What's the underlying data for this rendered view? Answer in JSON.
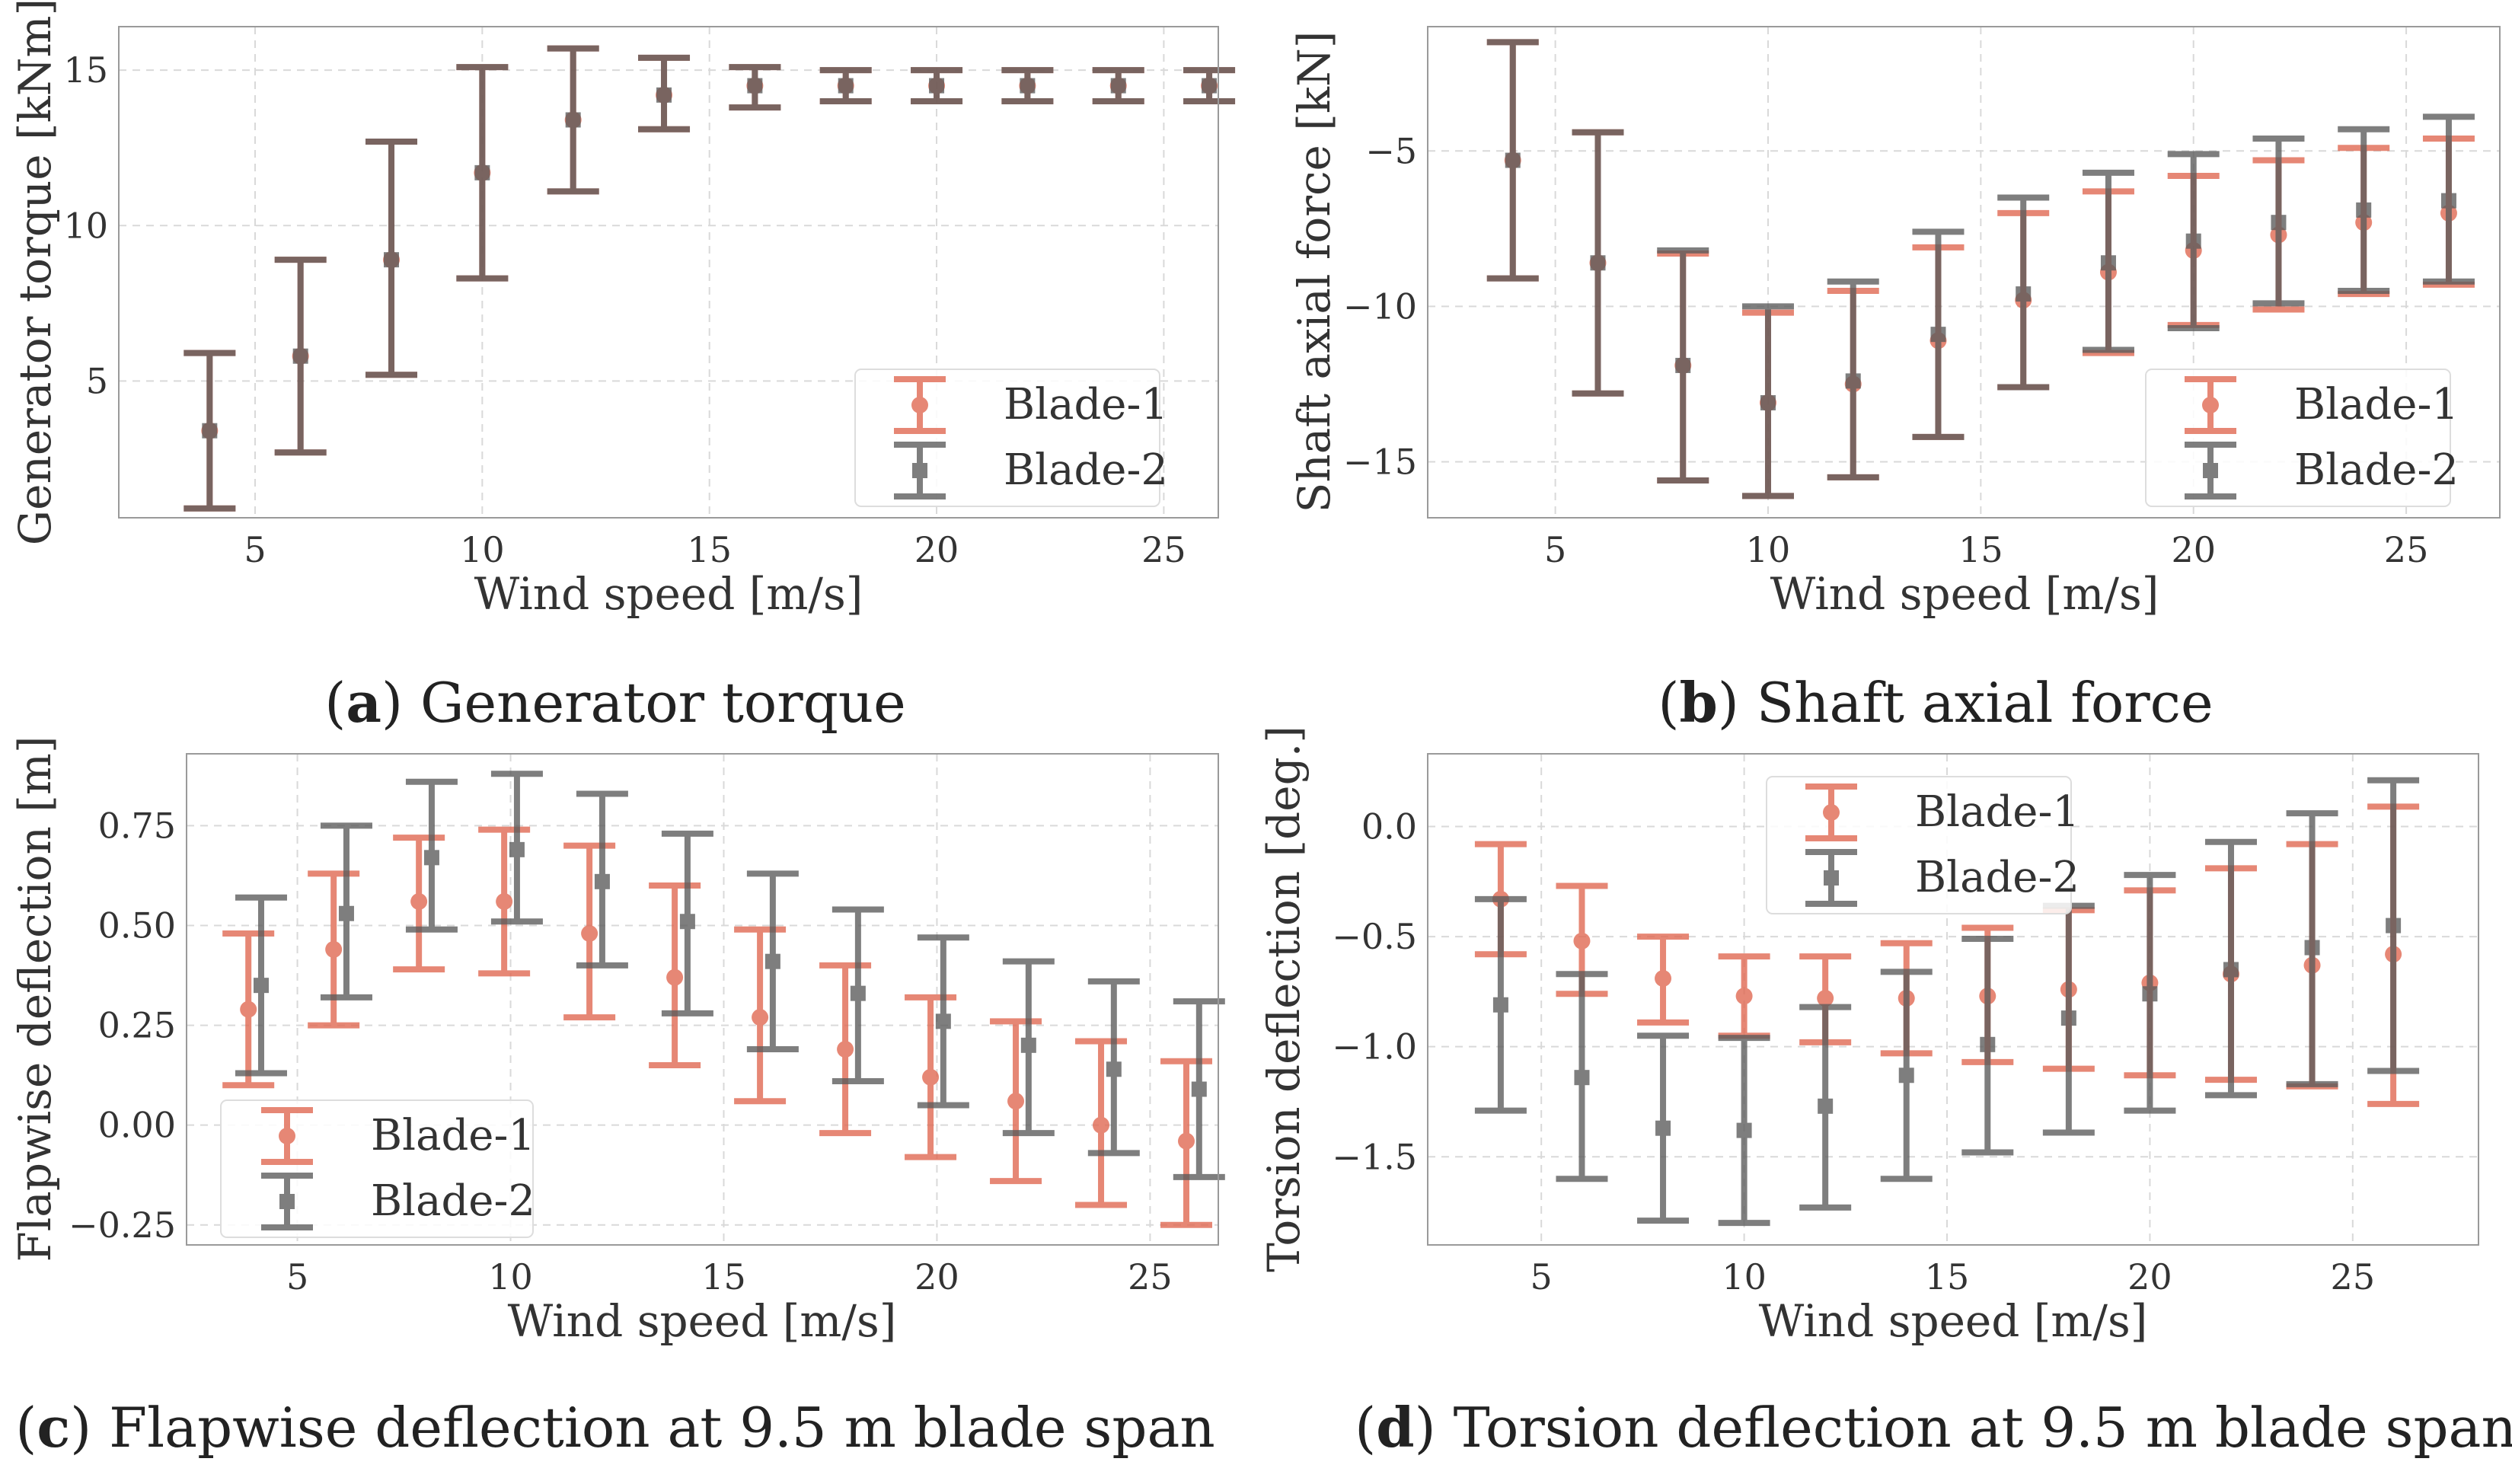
{
  "colors": {
    "blade1": "#e0664f",
    "blade2": "#5b5b5b",
    "overlap": "#6e5a52"
  },
  "chart_data": [
    {
      "type": "errorbar",
      "id": "a",
      "caption_letter": "a",
      "caption_text": "Generator torque",
      "xlabel": "Wind speed [m/s]",
      "ylabel": "Generator torque [kNm]",
      "xlim": [
        2.0,
        26.2
      ],
      "ylim": [
        0.6,
        16.4
      ],
      "xticks": [
        5,
        10,
        15,
        20,
        25
      ],
      "yticks": [
        5,
        10,
        15
      ],
      "legend": "lower right",
      "x": [
        4,
        6,
        8,
        10,
        12,
        14,
        16,
        18,
        20,
        22,
        24,
        26
      ],
      "series": [
        {
          "name": "Blade-1",
          "marker": "circle",
          "mean": [
            3.4,
            5.8,
            8.9,
            11.7,
            13.4,
            14.2,
            14.5,
            14.5,
            14.5,
            14.5,
            14.5,
            14.5
          ],
          "lower": [
            0.9,
            2.7,
            5.2,
            8.3,
            11.1,
            13.1,
            13.8,
            14.0,
            14.0,
            14.0,
            14.0,
            14.0
          ],
          "upper": [
            5.9,
            8.9,
            12.7,
            15.1,
            15.7,
            15.4,
            15.1,
            15.0,
            15.0,
            15.0,
            15.0,
            15.0
          ]
        },
        {
          "name": "Blade-2",
          "marker": "square",
          "mean": [
            3.4,
            5.8,
            8.9,
            11.7,
            13.4,
            14.2,
            14.5,
            14.5,
            14.5,
            14.5,
            14.5,
            14.5
          ],
          "lower": [
            0.9,
            2.7,
            5.2,
            8.3,
            11.1,
            13.1,
            13.8,
            14.0,
            14.0,
            14.0,
            14.0,
            14.0
          ],
          "upper": [
            5.9,
            8.9,
            12.7,
            15.1,
            15.7,
            15.4,
            15.1,
            15.0,
            15.0,
            15.0,
            15.0,
            15.0
          ]
        }
      ]
    },
    {
      "type": "errorbar",
      "id": "b",
      "caption_letter": "b",
      "caption_text": "Shaft axial force",
      "xlabel": "Wind speed [m/s]",
      "ylabel": "Shaft axial force [kN]",
      "xlim": [
        2.0,
        27.2
      ],
      "ylim": [
        -16.8,
        -1.0
      ],
      "xticks": [
        5,
        10,
        15,
        20,
        25
      ],
      "yticks": [
        -15,
        -10,
        -5
      ],
      "legend": "lower right",
      "x": [
        4,
        6,
        8,
        10,
        12,
        14,
        16,
        18,
        20,
        22,
        24,
        26
      ],
      "series": [
        {
          "name": "Blade-1",
          "marker": "circle",
          "mean": [
            -5.3,
            -8.6,
            -11.9,
            -13.1,
            -12.5,
            -11.1,
            -9.8,
            -8.9,
            -8.2,
            -7.7,
            -7.3,
            -7.0
          ],
          "lower": [
            -9.1,
            -12.8,
            -15.6,
            -16.1,
            -15.5,
            -14.2,
            -12.6,
            -11.5,
            -10.6,
            -10.1,
            -9.6,
            -9.3
          ],
          "upper": [
            -1.5,
            -4.4,
            -8.3,
            -10.2,
            -9.5,
            -8.1,
            -7.0,
            -6.3,
            -5.8,
            -5.3,
            -4.9,
            -4.6
          ]
        },
        {
          "name": "Blade-2",
          "marker": "square",
          "mean": [
            -5.3,
            -8.6,
            -11.9,
            -13.1,
            -12.4,
            -10.9,
            -9.6,
            -8.6,
            -7.9,
            -7.3,
            -6.9,
            -6.6
          ],
          "lower": [
            -9.1,
            -12.8,
            -15.6,
            -16.1,
            -15.5,
            -14.2,
            -12.6,
            -11.4,
            -10.7,
            -9.9,
            -9.5,
            -9.2
          ],
          "upper": [
            -1.5,
            -4.4,
            -8.2,
            -10.0,
            -9.2,
            -7.6,
            -6.5,
            -5.7,
            -5.1,
            -4.6,
            -4.3,
            -3.9
          ]
        }
      ]
    },
    {
      "type": "errorbar",
      "id": "c",
      "caption_letter": "c",
      "caption_text": "Flapwise deflection at 9.5 m blade span",
      "xlabel": "Wind speed [m/s]",
      "ylabel": "Flapwise deflection [m]",
      "xlim": [
        2.4,
        26.6
      ],
      "ylim": [
        -0.3,
        0.93
      ],
      "xticks": [
        5,
        10,
        15,
        20,
        25
      ],
      "yticks": [
        -0.25,
        0.0,
        0.25,
        0.5,
        0.75
      ],
      "ytick_labels": [
        "−0.25",
        "0.00",
        "0.25",
        "0.50",
        "0.75"
      ],
      "legend": "lower left",
      "x": [
        4,
        6,
        8,
        10,
        12,
        14,
        16,
        18,
        20,
        22,
        24,
        26
      ],
      "series": [
        {
          "name": "Blade-1",
          "marker": "circle",
          "xoffset": -0.15,
          "mean": [
            0.29,
            0.44,
            0.56,
            0.56,
            0.48,
            0.37,
            0.27,
            0.19,
            0.12,
            0.06,
            0.0,
            -0.04
          ],
          "lower": [
            0.1,
            0.25,
            0.39,
            0.38,
            0.27,
            0.15,
            0.06,
            -0.02,
            -0.08,
            -0.14,
            -0.2,
            -0.25
          ],
          "upper": [
            0.48,
            0.63,
            0.72,
            0.74,
            0.7,
            0.6,
            0.49,
            0.4,
            0.32,
            0.26,
            0.21,
            0.16
          ]
        },
        {
          "name": "Blade-2",
          "marker": "square",
          "xoffset": 0.15,
          "mean": [
            0.35,
            0.53,
            0.67,
            0.69,
            0.61,
            0.51,
            0.41,
            0.33,
            0.26,
            0.2,
            0.14,
            0.09
          ],
          "lower": [
            0.13,
            0.32,
            0.49,
            0.51,
            0.4,
            0.28,
            0.19,
            0.11,
            0.05,
            -0.02,
            -0.07,
            -0.13
          ],
          "upper": [
            0.57,
            0.75,
            0.86,
            0.88,
            0.83,
            0.73,
            0.63,
            0.54,
            0.47,
            0.41,
            0.36,
            0.31
          ]
        }
      ]
    },
    {
      "type": "errorbar",
      "id": "d",
      "caption_letter": "d",
      "caption_text": "Torsion deflection at 9.5 m blade span",
      "xlabel": "Wind speed [m/s]",
      "ylabel": "Torsion deflection [deg.]",
      "xlim": [
        2.2,
        28.1
      ],
      "ylim": [
        -1.9,
        0.33
      ],
      "xticks": [
        5,
        10,
        15,
        20,
        25
      ],
      "yticks": [
        -1.5,
        -1.0,
        -0.5,
        0.0
      ],
      "ytick_labels": [
        "−1.5",
        "−1.0",
        "−0.5",
        "0.0"
      ],
      "legend": "upper center",
      "x": [
        4,
        6,
        8,
        10,
        12,
        14,
        16,
        18,
        20,
        22,
        24,
        26
      ],
      "series": [
        {
          "name": "Blade-1",
          "marker": "circle",
          "mean": [
            -0.33,
            -0.52,
            -0.69,
            -0.77,
            -0.78,
            -0.78,
            -0.77,
            -0.74,
            -0.71,
            -0.67,
            -0.63,
            -0.58
          ],
          "lower": [
            -0.58,
            -0.76,
            -0.89,
            -0.95,
            -0.98,
            -1.03,
            -1.07,
            -1.1,
            -1.13,
            -1.15,
            -1.18,
            -1.26
          ],
          "upper": [
            -0.08,
            -0.27,
            -0.5,
            -0.59,
            -0.59,
            -0.53,
            -0.46,
            -0.38,
            -0.29,
            -0.19,
            -0.08,
            0.09
          ]
        },
        {
          "name": "Blade-2",
          "marker": "square",
          "mean": [
            -0.81,
            -1.14,
            -1.37,
            -1.38,
            -1.27,
            -1.13,
            -0.99,
            -0.87,
            -0.76,
            -0.65,
            -0.55,
            -0.45
          ],
          "lower": [
            -1.29,
            -1.6,
            -1.79,
            -1.8,
            -1.73,
            -1.6,
            -1.48,
            -1.39,
            -1.29,
            -1.22,
            -1.17,
            -1.11
          ],
          "upper": [
            -0.33,
            -0.67,
            -0.95,
            -0.96,
            -0.82,
            -0.66,
            -0.51,
            -0.36,
            -0.22,
            -0.07,
            0.06,
            0.21
          ]
        }
      ]
    }
  ]
}
